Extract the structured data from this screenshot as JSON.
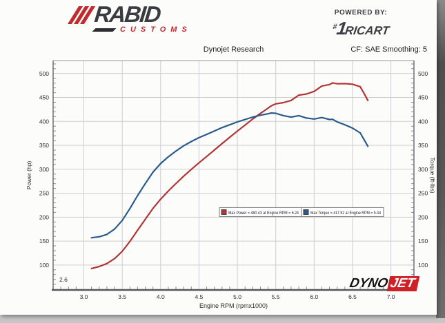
{
  "page": {
    "header": {
      "rabid_logo": {
        "brand": "RABID",
        "sub": "CUSTOMS"
      },
      "powered_by": {
        "label": "POWERED BY:",
        "hash": "#",
        "one": "1",
        "name": "RICART"
      }
    },
    "chart_header": {
      "title": "Dynojet Research",
      "smoothing": "CF: SAE Smoothing: 5"
    },
    "dynojet_logo": {
      "part1": "DYNO",
      "part2": "JET"
    }
  },
  "chart_data": {
    "type": "line",
    "title": "Dynojet Research",
    "xlabel": "Engine RPM (rpmx1000)",
    "ylabel_left": "Power (hp)",
    "ylabel_right": "Torque (ft-lbs)",
    "x_start_annotation": "2.6",
    "xlim": [
      2.6,
      7.3
    ],
    "ylim": [
      48,
      527
    ],
    "x_ticks": [
      3.0,
      3.5,
      4.0,
      4.5,
      5.0,
      5.5,
      6.0,
      6.5,
      7.0
    ],
    "y_ticks": [
      100,
      150,
      200,
      250,
      300,
      350,
      400,
      450,
      500
    ],
    "grid": true,
    "legend_position": "inside-center-right",
    "max_power": {
      "value": 480.43,
      "rpm": 6.24
    },
    "max_torque": {
      "value": 417.52,
      "rpm": 5.44
    },
    "series": [
      {
        "name": "Power",
        "axis": "left",
        "color": "#b23434",
        "legend": "Max Power = 480.43 at Engine RPM = 6.24",
        "x": [
          3.1,
          3.2,
          3.3,
          3.4,
          3.5,
          3.6,
          3.7,
          3.8,
          3.9,
          4.0,
          4.1,
          4.2,
          4.3,
          4.4,
          4.5,
          4.6,
          4.7,
          4.8,
          4.9,
          5.0,
          5.1,
          5.2,
          5.3,
          5.4,
          5.44,
          5.5,
          5.6,
          5.7,
          5.8,
          5.9,
          6.0,
          6.1,
          6.2,
          6.24,
          6.3,
          6.4,
          6.5,
          6.6,
          6.65,
          6.7
        ],
        "y": [
          92.7,
          96.9,
          103.1,
          113.3,
          128.6,
          149.4,
          172.6,
          195.4,
          218.3,
          237.6,
          254.5,
          270.3,
          285.7,
          299.9,
          313.5,
          326.7,
          340.1,
          353.7,
          366.7,
          379.9,
          392.3,
          405.0,
          416.6,
          427.7,
          432.5,
          436.6,
          439.3,
          443.9,
          455.0,
          457.2,
          462.7,
          473.9,
          476.9,
          480.4,
          478.6,
          478.9,
          477.7,
          472.5,
          458.4,
          443.9
        ]
      },
      {
        "name": "Torque",
        "axis": "right",
        "color": "#2a5a8c",
        "legend": "Max Torque = 417.52 at Engine RPM = 5.44",
        "x": [
          3.1,
          3.2,
          3.3,
          3.4,
          3.5,
          3.6,
          3.7,
          3.8,
          3.9,
          4.0,
          4.1,
          4.2,
          4.3,
          4.4,
          4.5,
          4.6,
          4.7,
          4.8,
          4.9,
          5.0,
          5.1,
          5.2,
          5.3,
          5.4,
          5.44,
          5.5,
          5.6,
          5.7,
          5.8,
          5.9,
          6.0,
          6.1,
          6.2,
          6.24,
          6.3,
          6.4,
          6.5,
          6.6,
          6.65,
          6.7
        ],
        "y": [
          157,
          159,
          164,
          175,
          193,
          218,
          245,
          270,
          294,
          312,
          326,
          338,
          349,
          358,
          366,
          373,
          380,
          387,
          393,
          399,
          404,
          409,
          413,
          416,
          417.5,
          417,
          412,
          409,
          412,
          407,
          405,
          408,
          404,
          404.4,
          399,
          393,
          386,
          376,
          362,
          348
        ]
      }
    ]
  }
}
